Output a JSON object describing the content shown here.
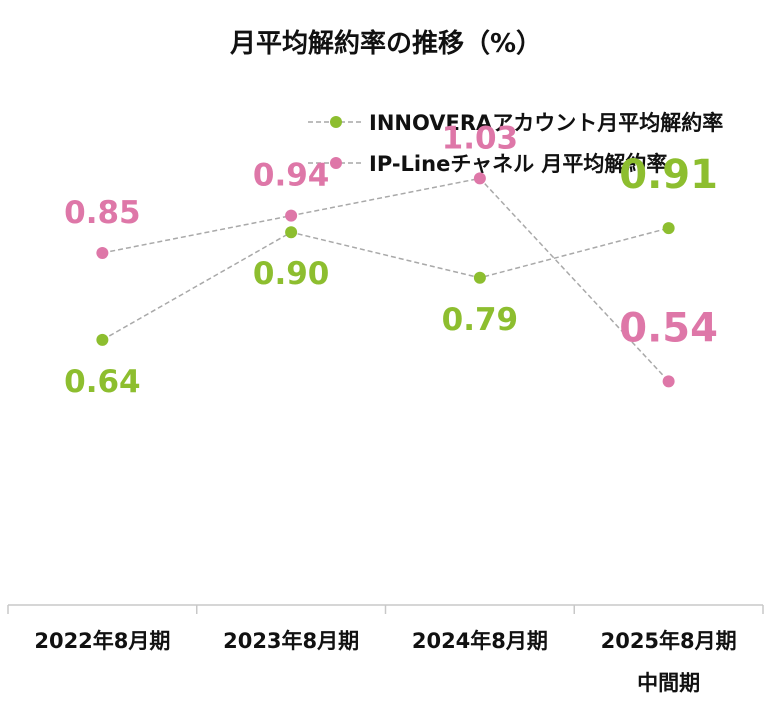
{
  "chart_data": {
    "type": "line",
    "title": "月平均解約率の推移（%）",
    "categories": [
      [
        "2022年8月期"
      ],
      [
        "2023年8月期"
      ],
      [
        "2024年8月期"
      ],
      [
        "2025年8月期",
        "中間期"
      ]
    ],
    "series": [
      {
        "name": "INNOVERAアカウント月平均解約率",
        "color": "#8dbe2f",
        "values": [
          0.64,
          0.9,
          0.79,
          0.91
        ],
        "labels": [
          "0.64",
          "0.90",
          "0.79",
          "0.91"
        ],
        "label_position": [
          "below",
          "below",
          "below",
          "above"
        ]
      },
      {
        "name": "IP-Lineチャネル 月平均解約率",
        "color": "#de77a8",
        "values": [
          0.85,
          0.94,
          1.03,
          0.54
        ],
        "labels": [
          "0.85",
          "0.94",
          "1.03",
          "0.54"
        ],
        "label_position": [
          "above",
          "above",
          "above",
          "above"
        ]
      }
    ],
    "legend_position": "top-right",
    "line_style": "dashed-gray",
    "grid": false,
    "ylim": [
      0,
      1.34
    ]
  }
}
